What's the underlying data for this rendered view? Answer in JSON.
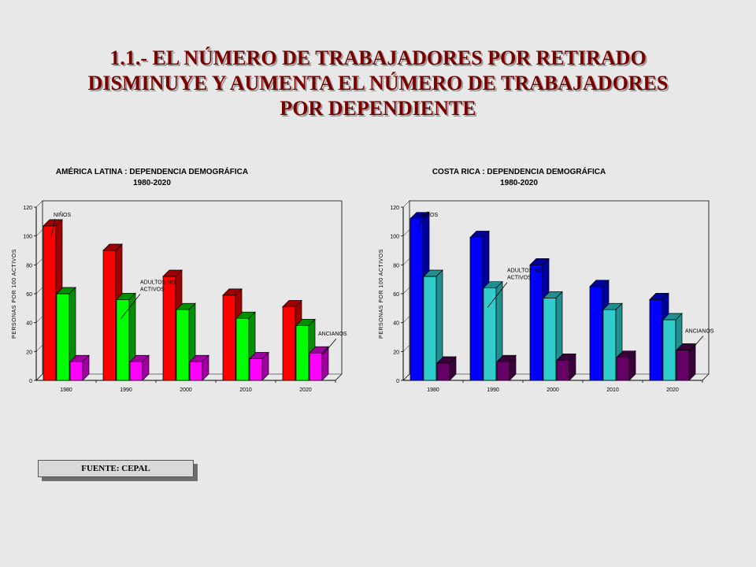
{
  "slide": {
    "title_line1": "1.1.- EL NÚMERO DE TRABAJADORES POR RETIRADO",
    "title_line2": "DISMINUYE Y AUMENTA EL NÚMERO DE TRABAJADORES",
    "title_line3": "POR DEPENDIENTE",
    "title_color": "#7a0000"
  },
  "source": {
    "label": "FUENTE: CEPAL"
  },
  "chart_data": [
    {
      "type": "bar",
      "title": "AMÉRICA LATINA : DEPENDENCIA DEMOGRÁFICA",
      "subtitle": "1980-2020",
      "xlabel": "",
      "ylabel": "PERSONAS POR 100 ACTIVOS",
      "ylim": [
        0,
        120
      ],
      "yticks": [
        0,
        20,
        40,
        60,
        80,
        100,
        120
      ],
      "categories": [
        "1980",
        "1990",
        "2000",
        "2010",
        "2020"
      ],
      "grid": false,
      "series": [
        {
          "name": "NIÑOS",
          "values": [
            107,
            90,
            72,
            59,
            51
          ],
          "color": "#ff0000",
          "side": "#9c0000"
        },
        {
          "name": "ADULTOS NO ACTIVOS",
          "values": [
            60,
            56,
            49,
            43,
            38
          ],
          "color": "#00ff00",
          "side": "#009000"
        },
        {
          "name": "ANCIANOS",
          "values": [
            13,
            13,
            13,
            15,
            19
          ],
          "color": "#ff00ff",
          "side": "#a000a0"
        }
      ],
      "annotations": [
        {
          "text": "NIÑOS",
          "series": 0
        },
        {
          "text": "ADULTOS NO ACTIVOS",
          "series": 1
        },
        {
          "text": "ANCIANOS",
          "series": 2
        }
      ],
      "plot_bg": "#e8e8e8"
    },
    {
      "type": "bar",
      "title": "COSTA RICA : DEPENDENCIA DEMOGRÁFICA",
      "subtitle": "1980-2020",
      "xlabel": "",
      "ylabel": "PERSONAS POR 100 ACTIVOS",
      "ylim": [
        0,
        120
      ],
      "yticks": [
        0,
        20,
        40,
        60,
        80,
        100,
        120
      ],
      "categories": [
        "1980",
        "1990",
        "2000",
        "2010",
        "2020"
      ],
      "grid": false,
      "series": [
        {
          "name": "NIÑOS",
          "values": [
            112,
            99,
            80,
            65,
            56
          ],
          "color": "#0000ff",
          "side": "#00009a"
        },
        {
          "name": "ADULTOS NO ACTIVOS",
          "values": [
            72,
            64,
            57,
            49,
            42
          ],
          "color": "#33cccc",
          "side": "#1f8f8f"
        },
        {
          "name": "ANCIANOS",
          "values": [
            12,
            13,
            14,
            16,
            21
          ],
          "color": "#660066",
          "side": "#3a003a"
        }
      ],
      "annotations": [
        {
          "text": "NIÑOS",
          "series": 0
        },
        {
          "text": "ADULTOS NO ACTIVOS",
          "series": 1
        },
        {
          "text": "ANCIANOS",
          "series": 2
        }
      ],
      "plot_bg": "#e8e8e8"
    }
  ]
}
